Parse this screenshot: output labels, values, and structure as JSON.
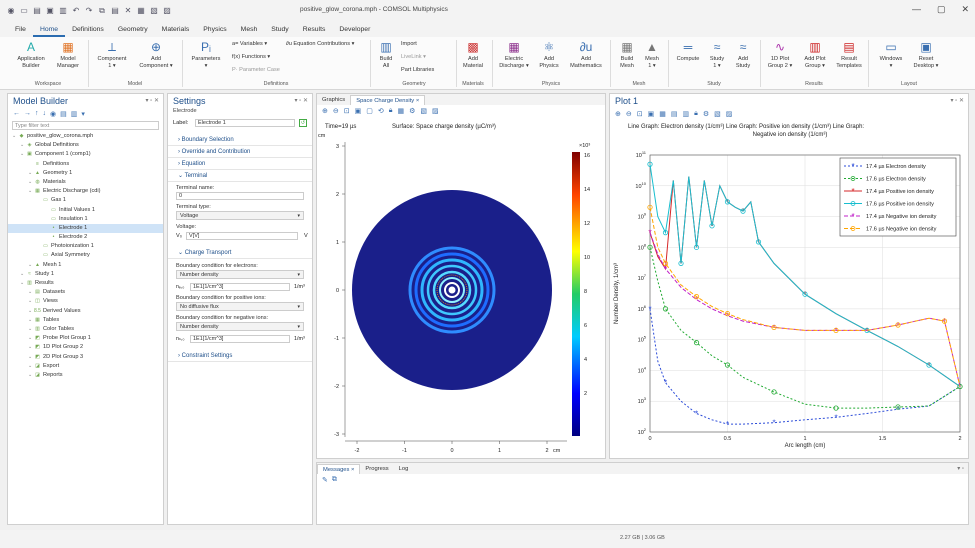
{
  "window": {
    "title": "positive_glow_corona.mph - COMSOL Multiphysics"
  },
  "menu": [
    "File",
    "Home",
    "Definitions",
    "Geometry",
    "Materials",
    "Physics",
    "Mesh",
    "Study",
    "Results",
    "Developer"
  ],
  "ribbon": {
    "app_builder": "Application\nBuilder",
    "model_manager": "Model\nManager",
    "workspace": "Workspace",
    "component": "Component\n1 ▾",
    "add_component": "Add\nComponent ▾",
    "model": "Model",
    "parameters": "Parameters\n▾",
    "variables": "a= Variables ▾",
    "functions": "f(x) Functions ▾",
    "param_case": "P· Parameter Case",
    "eq_contrib": "∂u Equation Contributions ▾",
    "definitions": "Definitions",
    "build_all": "Build\nAll",
    "import": "Import",
    "livelink": "LiveLink ▾",
    "part_library": "Part Libraries",
    "geometry": "Geometry",
    "add_material": "Add\nMaterial",
    "materials": "Materials",
    "electric_discharge": "Electric\nDischarge ▾",
    "add_physics": "Add\nPhysics",
    "add_math": "Add\nMathematics",
    "physics": "Physics",
    "build_mesh": "Build\nMesh",
    "mesh1": "Mesh\n1 ▾",
    "mesh": "Mesh",
    "compute": "Compute",
    "study1": "Study\n1 ▾",
    "add_study": "Add\nStudy",
    "study": "Study",
    "plot_group": "1D Plot\nGroup 2 ▾",
    "add_plot": "Add Plot\nGroup ▾",
    "result_templates": "Result\nTemplates",
    "results": "Results",
    "windows": "Windows\n▾",
    "reset_desktop": "Reset\nDesktop ▾",
    "layout": "Layout"
  },
  "model_builder": {
    "title": "Model Builder",
    "filter": "Type filter text",
    "tree": [
      {
        "label": "positive_glow_corona.mph",
        "lvl": 0,
        "ic": "◆"
      },
      {
        "label": "Global Definitions",
        "lvl": 1,
        "ic": "◈"
      },
      {
        "label": "Component 1 (comp1)",
        "lvl": 1,
        "ic": "▣"
      },
      {
        "label": "Definitions",
        "lvl": 2,
        "ic": "≡"
      },
      {
        "label": "Geometry 1",
        "lvl": 2,
        "ic": "▲"
      },
      {
        "label": "Materials",
        "lvl": 2,
        "ic": "◍"
      },
      {
        "label": "Electric Discharge (cdi)",
        "lvl": 2,
        "ic": "▦"
      },
      {
        "label": "Gas 1",
        "lvl": 3,
        "ic": "▭"
      },
      {
        "label": "Initial Values 1",
        "lvl": 4,
        "ic": "▭"
      },
      {
        "label": "Insulation 1",
        "lvl": 4,
        "ic": "▭"
      },
      {
        "label": "Electrode 1",
        "lvl": 4,
        "ic": "•",
        "sel": true
      },
      {
        "label": "Electrode 2",
        "lvl": 4,
        "ic": "•"
      },
      {
        "label": "Photoionization 1",
        "lvl": 3,
        "ic": "▭"
      },
      {
        "label": "Axial Symmetry",
        "lvl": 3,
        "ic": "▭"
      },
      {
        "label": "Mesh 1",
        "lvl": 2,
        "ic": "▲"
      },
      {
        "label": "Study 1",
        "lvl": 1,
        "ic": "≈"
      },
      {
        "label": "Results",
        "lvl": 1,
        "ic": "▥"
      },
      {
        "label": "Datasets",
        "lvl": 2,
        "ic": "▤"
      },
      {
        "label": "Views",
        "lvl": 2,
        "ic": "◫"
      },
      {
        "label": "Derived Values",
        "lvl": 2,
        "ic": "8.5"
      },
      {
        "label": "Tables",
        "lvl": 2,
        "ic": "▦"
      },
      {
        "label": "Color Tables",
        "lvl": 2,
        "ic": "▥"
      },
      {
        "label": "Probe Plot Group 1",
        "lvl": 2,
        "ic": "◩"
      },
      {
        "label": "1D Plot Group 2",
        "lvl": 2,
        "ic": "◩"
      },
      {
        "label": "2D Plot Group 3",
        "lvl": 2,
        "ic": "◩"
      },
      {
        "label": "Export",
        "lvl": 2,
        "ic": "◪"
      },
      {
        "label": "Reports",
        "lvl": 2,
        "ic": "◪"
      }
    ]
  },
  "settings": {
    "title": "Settings",
    "subtitle": "Electrode",
    "label_caption": "Label:",
    "label_value": "Electrode 1",
    "sections": {
      "boundary": "Boundary Selection",
      "override": "Override and Contribution",
      "equation": "Equation",
      "terminal": "Terminal",
      "charge": "Charge Transport",
      "constraint": "Constraint Settings"
    },
    "terminal_name_lbl": "Terminal name:",
    "terminal_name": "0",
    "terminal_type_lbl": "Terminal type:",
    "terminal_type": "Voltage",
    "voltage_lbl": "Voltage:",
    "voltage_sym": "V₀",
    "voltage_val": "V[V]",
    "voltage_unit": "V",
    "bc_e_lbl": "Boundary condition for electrons:",
    "bc_e": "Number density",
    "ne_sym": "nₑ,₀",
    "ne_val": "1E1[1/cm^3]",
    "ne_unit": "1/m³",
    "bc_p_lbl": "Boundary condition for positive ions:",
    "bc_p": "No diffusive flux",
    "bc_n_lbl": "Boundary condition for negative ions:",
    "bc_n": "Number density",
    "nn_sym": "nₙ,₀",
    "nn_val": "1E1[1/cm^3]",
    "nn_unit": "1/m³"
  },
  "graphics": {
    "tabs": [
      "Graphics",
      "Space Charge Density ×"
    ],
    "time": "Time=19 µs",
    "surface": "Surface: Space charge density (µC/m³)",
    "unit": "cm",
    "cb_exp": "×10³",
    "cb_ticks": [
      "16",
      "14",
      "12",
      "10",
      "8",
      "6",
      "4",
      "2"
    ],
    "yticks": [
      "3",
      "2",
      "1",
      "0",
      "-1",
      "-2",
      "-3"
    ],
    "xticks": [
      "-2",
      "-1",
      "0",
      "1",
      "2"
    ],
    "xunit": "cm"
  },
  "plot": {
    "title": "Plot 1",
    "header": "Line Graph: Electron density (1/cm³)  Line Graph: Positive ion density (1/cm³)  Line Graph: Negative ion density (1/cm³)",
    "ylabel": "Number Density, 1/cm³",
    "xlabel": "Arc length (cm)",
    "legend": [
      {
        "label": "17.4 µs Electron density",
        "color": "#2b4bd8",
        "marker": "*",
        "dash": "2,2"
      },
      {
        "label": "17.6 µs Electron density",
        "color": "#22aa33",
        "marker": "o",
        "dash": "2,2"
      },
      {
        "label": "17.4 µs Positive ion density",
        "color": "#d62728",
        "marker": "*",
        "dash": ""
      },
      {
        "label": "17.6 µs Positive ion density",
        "color": "#17becf",
        "marker": "o",
        "dash": ""
      },
      {
        "label": "17.4 µs Negative ion density",
        "color": "#c020c8",
        "marker": "*",
        "dash": "4,2"
      },
      {
        "label": "17.6 µs Negative ion density",
        "color": "#ffa500",
        "marker": "o",
        "dash": "4,2"
      }
    ]
  },
  "chart_data": {
    "type": "line",
    "xlabel": "Arc length (cm)",
    "ylabel": "Number Density, 1/cm³",
    "xlim": [
      0,
      2
    ],
    "ylim": [
      100,
      100000000000
    ],
    "yscale": "log",
    "series": [
      {
        "name": "17.4 µs Electron density",
        "x": [
          0,
          0.05,
          0.1,
          0.2,
          0.3,
          0.4,
          0.5,
          0.6,
          0.8,
          1.0,
          1.2,
          1.4,
          1.6,
          1.8,
          2.0
        ],
        "values": [
          1000000.0,
          20000.0,
          4000.0,
          1000.0,
          400,
          250,
          180,
          180,
          200,
          250,
          300,
          400,
          550,
          700,
          3000
        ]
      },
      {
        "name": "17.6 µs Electron density",
        "x": [
          0,
          0.05,
          0.1,
          0.2,
          0.3,
          0.4,
          0.5,
          0.6,
          0.8,
          1.0,
          1.2,
          1.4,
          1.6,
          1.8,
          2.0
        ],
        "values": [
          100000000.0,
          8000000.0,
          1000000.0,
          200000.0,
          80000.0,
          30000.0,
          15000.0,
          6000.0,
          2000.0,
          800,
          600,
          600,
          650,
          700,
          3000
        ]
      },
      {
        "name": "17.4 µs Positive ion density",
        "x": [
          0,
          0.05,
          0.1,
          0.15,
          0.2,
          0.25,
          0.3,
          0.35,
          0.4,
          0.45,
          0.5,
          0.55,
          0.6,
          0.65,
          0.7,
          0.8,
          1.0,
          1.2,
          1.4,
          1.6,
          1.8,
          2.0
        ],
        "values": [
          300000000.0,
          50000000.0,
          20000000.0,
          15000000000.0,
          30000000.0,
          20000000000.0,
          100000000.0,
          15000000000.0,
          500000000.0,
          10000000000.0,
          3000000000.0,
          2000000000.0,
          1500000000.0,
          3000000000.0,
          150000000.0,
          30000000.0,
          3000000.0,
          700000.0,
          200000.0,
          60000.0,
          15000.0,
          3000.0
        ]
      },
      {
        "name": "17.6 µs Positive ion density",
        "x": [
          0,
          0.05,
          0.1,
          0.15,
          0.2,
          0.25,
          0.3,
          0.35,
          0.4,
          0.45,
          0.5,
          0.55,
          0.6,
          0.65,
          0.7,
          0.8,
          1.0,
          1.2,
          1.4,
          1.6,
          1.8,
          2.0
        ],
        "values": [
          50000000000.0,
          1000000000.0,
          300000000.0,
          15000000000.0,
          30000000.0,
          20000000000.0,
          100000000.0,
          15000000000.0,
          500000000.0,
          10000000000.0,
          3000000000.0,
          2000000000.0,
          1500000000.0,
          3000000000.0,
          150000000.0,
          30000000.0,
          3000000.0,
          700000.0,
          200000.0,
          60000.0,
          15000.0,
          3000.0
        ]
      },
      {
        "name": "17.4 µs Negative ion density",
        "x": [
          0,
          0.05,
          0.1,
          0.2,
          0.3,
          0.4,
          0.5,
          0.6,
          0.8,
          1.0,
          1.2,
          1.4,
          1.6,
          1.8,
          1.9,
          2.0
        ],
        "values": [
          300000000.0,
          60000000.0,
          20000000.0,
          5000000.0,
          2000000.0,
          1000000.0,
          600000.0,
          400000.0,
          250000.0,
          200000.0,
          200000.0,
          200000.0,
          300000.0,
          500000.0,
          400000.0,
          3000.0
        ]
      },
      {
        "name": "17.6 µs Negative ion density",
        "x": [
          0,
          0.05,
          0.1,
          0.2,
          0.3,
          0.4,
          0.5,
          0.6,
          0.8,
          1.0,
          1.2,
          1.4,
          1.6,
          1.8,
          1.9,
          2.0
        ],
        "values": [
          2000000000.0,
          100000000.0,
          30000000.0,
          6000000.0,
          2500000.0,
          1200000.0,
          700000.0,
          450000.0,
          250000.0,
          200000.0,
          200000.0,
          200000.0,
          300000.0,
          500000.0,
          400000.0,
          3000.0
        ]
      }
    ]
  },
  "messages": {
    "tabs": [
      "Messages ×",
      "Progress",
      "Log"
    ]
  },
  "status": {
    "memory": "2.27 GB | 3.06 GB"
  }
}
